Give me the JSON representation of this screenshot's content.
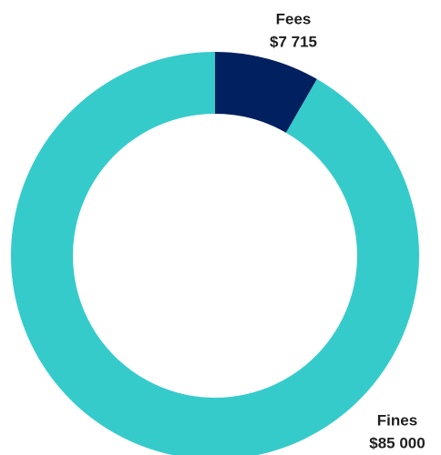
{
  "chart_data": {
    "type": "donut",
    "categories": [
      "Fees",
      "Fines"
    ],
    "values": [
      7715,
      85000
    ],
    "value_labels": [
      "$7 715",
      "$85 000"
    ],
    "colors": [
      "#002060",
      "#36cbcb"
    ]
  }
}
